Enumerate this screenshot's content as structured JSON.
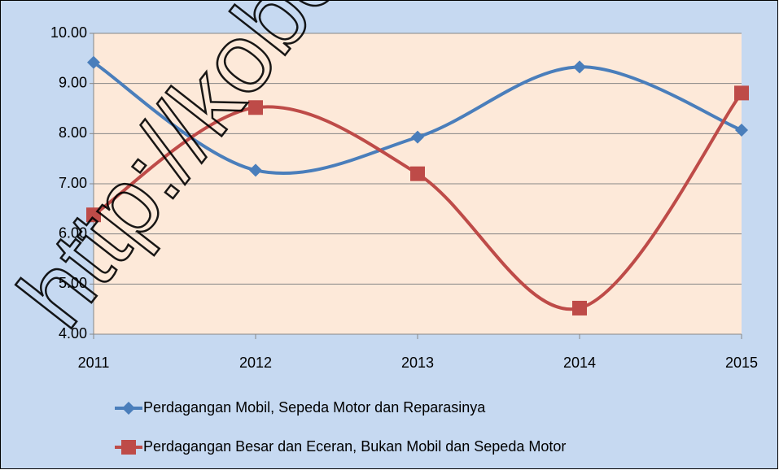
{
  "chart_data": {
    "type": "line",
    "watermark": "http://kobe",
    "categories": [
      "2011",
      "2012",
      "2013",
      "2014",
      "2015"
    ],
    "series": [
      {
        "name": "Perdagangan Mobil, Sepeda Motor dan Reparasinya",
        "color": "#4a7ebb",
        "marker": "diamond",
        "values": [
          9.42,
          7.27,
          7.93,
          9.33,
          8.07
        ]
      },
      {
        "name": "Perdagangan Besar dan Eceran, Bukan Mobil dan Sepeda Motor",
        "color": "#be4b48",
        "marker": "square",
        "values": [
          6.38,
          8.52,
          7.2,
          4.52,
          8.81
        ]
      }
    ],
    "ylim": [
      4,
      10
    ],
    "yticks": [
      {
        "value": 4,
        "label": "4.00"
      },
      {
        "value": 5,
        "label": "5.00"
      },
      {
        "value": 6,
        "label": "6.00"
      },
      {
        "value": 7,
        "label": "7.00"
      },
      {
        "value": 8,
        "label": "8.00"
      },
      {
        "value": 9,
        "label": "9.00"
      },
      {
        "value": 10,
        "label": "10.00"
      }
    ],
    "grid": true,
    "smooth": true,
    "legend": "bottom"
  }
}
